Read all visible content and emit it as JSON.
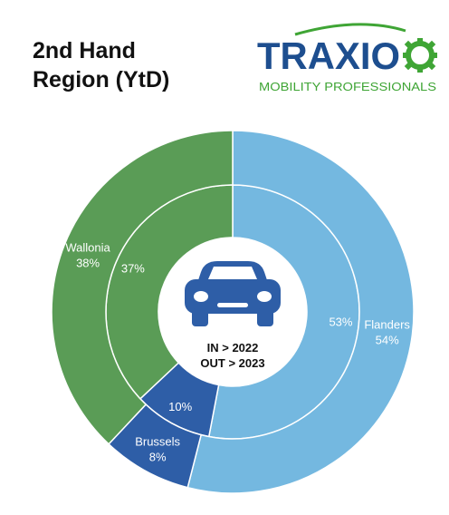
{
  "header": {
    "title_line1": "2nd Hand",
    "title_line2": "Region (YtD)"
  },
  "logo": {
    "name": "TRAXIO",
    "tagline": "MOBILITY PROFESSIONALS",
    "colors": {
      "brand_blue": "#1d4e8f",
      "brand_green": "#3fa535"
    }
  },
  "center": {
    "icon": "car-icon",
    "in_label": "IN > 2022",
    "out_label": "OUT > 2023"
  },
  "chart_data": {
    "type": "pie",
    "variant": "nested-donut",
    "categories": [
      "Flanders",
      "Brussels",
      "Wallonia"
    ],
    "series": [
      {
        "ring": "inner",
        "year": "2022",
        "values": [
          53,
          10,
          37
        ]
      },
      {
        "ring": "outer",
        "year": "2023",
        "values": [
          54,
          8,
          38
        ]
      }
    ],
    "colors": [
      "#74b8e0",
      "#2e5ea7",
      "#5a9c56"
    ],
    "labels": {
      "inner": [
        "53%",
        "10%",
        "37%"
      ],
      "outer": [
        {
          "name": "Flanders",
          "pct": "54%"
        },
        {
          "name": "Brussels",
          "pct": "8%"
        },
        {
          "name": "Wallonia",
          "pct": "38%"
        }
      ]
    }
  }
}
